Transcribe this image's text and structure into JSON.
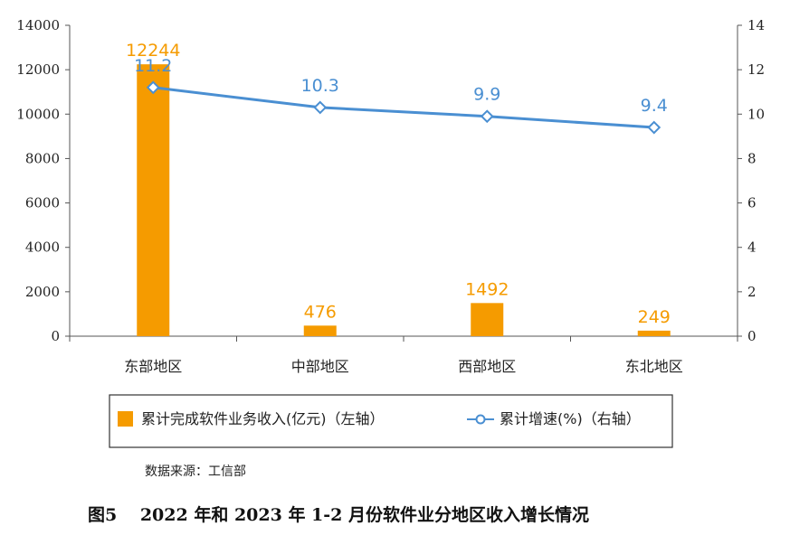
{
  "chart_data": {
    "type": "bar",
    "categories": [
      "东部地区",
      "中部地区",
      "西部地区",
      "东北地区"
    ],
    "series": [
      {
        "name": "累计完成软件业务收入(亿元)（左轴）",
        "type": "bar",
        "axis": "left",
        "values": [
          12244,
          476,
          1492,
          249
        ],
        "color": "#f59b00"
      },
      {
        "name": "累计增速(%)（右轴）",
        "type": "line",
        "axis": "right",
        "values": [
          11.2,
          10.3,
          9.9,
          9.4
        ],
        "color": "#4a8fd2"
      }
    ],
    "left_axis": {
      "ylim": [
        0,
        14000
      ],
      "ticks": [
        "0",
        "2000",
        "4000",
        "6000",
        "8000",
        "10000",
        "12000",
        "14000"
      ]
    },
    "right_axis": {
      "ylim": [
        0,
        14
      ],
      "ticks": [
        "0",
        "2",
        "4",
        "6",
        "8",
        "10",
        "12",
        "14"
      ]
    },
    "grid": false,
    "legend_position": "bottom"
  },
  "source": "数据来源：工信部",
  "caption": "图5　 2022 年和 2023 年 1-2 月份软件业分地区收入增长情况"
}
